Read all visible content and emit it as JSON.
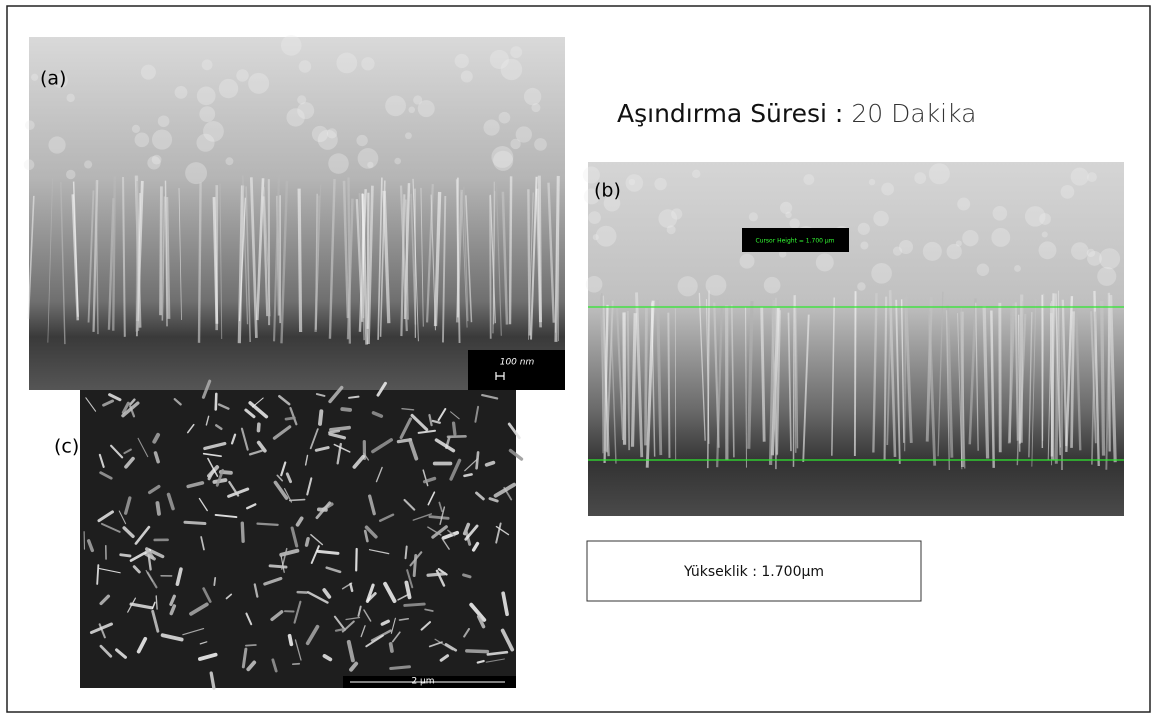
{
  "panels": {
    "a": {
      "label": "(a)",
      "scale_bar": "100 nm"
    },
    "b": {
      "label": "(b)",
      "cursor_label": "Cursor Height = 1.700 µm"
    },
    "c": {
      "label": "(c)",
      "scale_bar": "2 µm"
    }
  },
  "header": {
    "title_label": "Aşındırma Süresi :",
    "title_value": "20 Dakika"
  },
  "result_box": {
    "text": "Yükseklik : 1.700µm"
  }
}
